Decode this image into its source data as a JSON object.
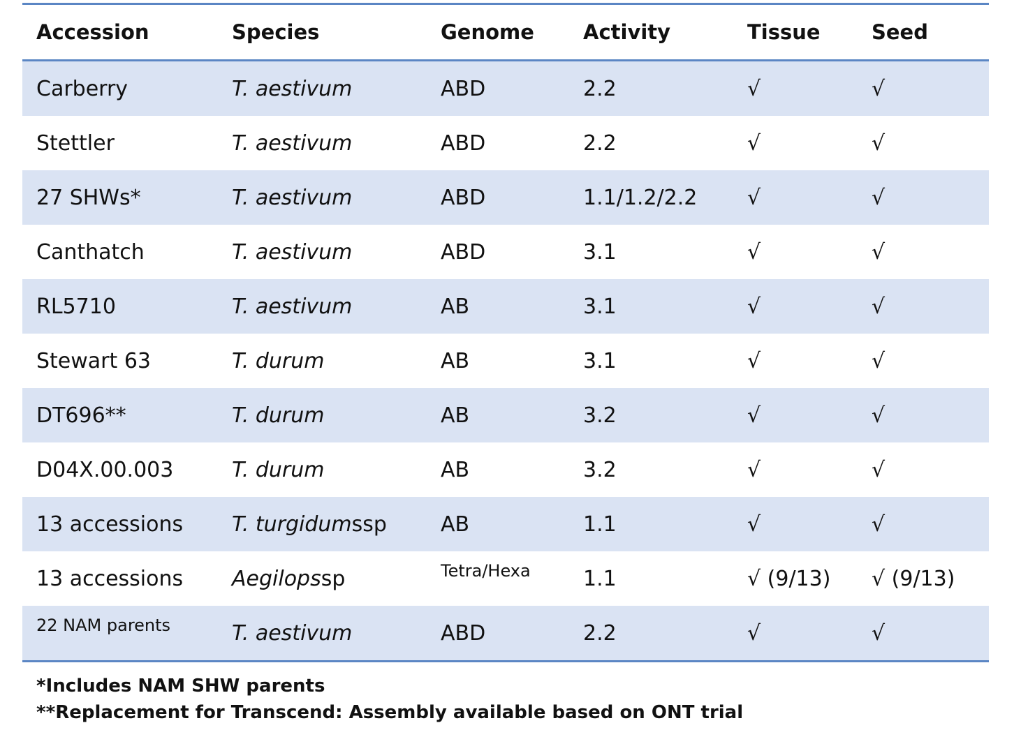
{
  "headers": [
    "Accession",
    "Species",
    "Genome",
    "Activity",
    "Tissue",
    "Seed"
  ],
  "rows": [
    {
      "accession": "Carberry",
      "species": "T. aestivum",
      "species_suffix": "",
      "genome": "ABD",
      "activity": "2.2",
      "tissue": "√",
      "seed": "√"
    },
    {
      "accession": "Stettler",
      "species": "T. aestivum",
      "species_suffix": "",
      "genome": "ABD",
      "activity": "2.2",
      "tissue": "√",
      "seed": "√"
    },
    {
      "accession": "27 SHWs*",
      "species": "T. aestivum",
      "species_suffix": "",
      "genome": "ABD",
      "activity": "1.1/1.2/2.2",
      "tissue": "√",
      "seed": "√"
    },
    {
      "accession": "Canthatch",
      "species": "T. aestivum",
      "species_suffix": "",
      "genome": "ABD",
      "activity": "3.1",
      "tissue": "√",
      "seed": "√"
    },
    {
      "accession": "RL5710",
      "species": "T. aestivum",
      "species_suffix": "",
      "genome": "AB",
      "activity": "3.1",
      "tissue": "√",
      "seed": "√"
    },
    {
      "accession": "Stewart 63",
      "species": "T. durum",
      "species_suffix": "",
      "genome": "AB",
      "activity": "3.1",
      "tissue": "√",
      "seed": "√"
    },
    {
      "accession": "DT696**",
      "species": "T. durum",
      "species_suffix": "",
      "genome": "AB",
      "activity": "3.2",
      "tissue": "√",
      "seed": "√"
    },
    {
      "accession": "D04X.00.003",
      "species": "T. durum",
      "species_suffix": "",
      "genome": "AB",
      "activity": "3.2",
      "tissue": "√",
      "seed": "√"
    },
    {
      "accession": "13 accessions",
      "species": "T. turgidum",
      "species_suffix": " ssp",
      "genome": "AB",
      "activity": "1.1",
      "tissue": "√",
      "seed": "√"
    },
    {
      "accession": "13 accessions",
      "species": "Aegilops",
      "species_suffix": " sp",
      "genome": "Tetra/Hexa",
      "activity": "1.1",
      "tissue": "√ (9/13)",
      "seed": "√ (9/13)"
    },
    {
      "accession": "22 NAM parents",
      "species": "T. aestivum",
      "species_suffix": "",
      "genome": "ABD",
      "activity": "2.2",
      "tissue": "√",
      "seed": "√"
    }
  ],
  "footnotes": [
    "*Includes NAM SHW parents",
    "**Replacement for Transcend: Assembly available based on ONT trial"
  ],
  "colors": {
    "band": "#dae3f3",
    "rule": "#5b86c4"
  }
}
